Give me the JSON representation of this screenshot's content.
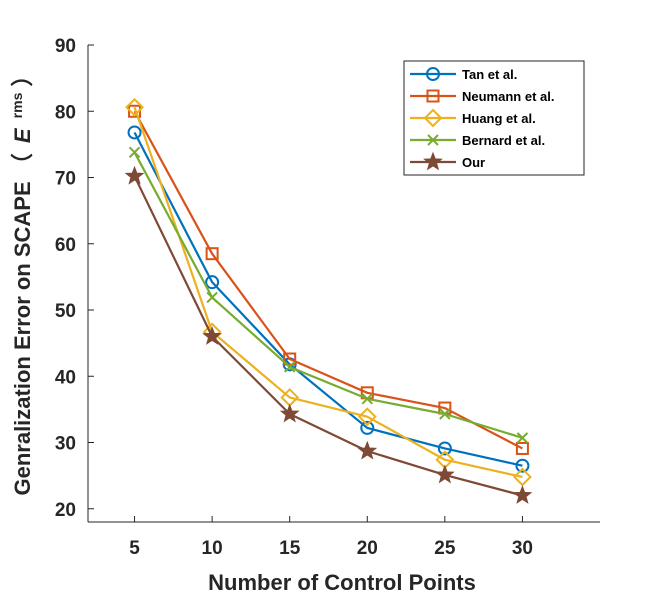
{
  "chart_data": {
    "type": "line",
    "title": "",
    "xlabel": "Number of Control Points",
    "ylabel_main": "Genralization  Error on SCAPE （",
    "ylabel_symbol": "E",
    "ylabel_subscript": "rms",
    "ylabel_close": "）",
    "xlim": [
      2,
      35
    ],
    "ylim": [
      18,
      90
    ],
    "x_ticks": [
      5,
      10,
      15,
      20,
      25,
      30
    ],
    "y_ticks": [
      20,
      30,
      40,
      50,
      60,
      70,
      80,
      90
    ],
    "grid": false,
    "legend_position": "top-right",
    "x": [
      5,
      10,
      15,
      20,
      25,
      30
    ],
    "series": [
      {
        "name": "Tan et al.",
        "color": "#0072BD",
        "marker": "circle",
        "values": [
          76.8,
          54.2,
          41.8,
          32.2,
          29.1,
          26.5
        ]
      },
      {
        "name": "Neumann et al.",
        "color": "#D95319",
        "marker": "square",
        "values": [
          80.0,
          58.5,
          42.6,
          37.5,
          35.2,
          29.1
        ]
      },
      {
        "name": "Huang et al.",
        "color": "#EDB120",
        "marker": "diamond",
        "values": [
          80.6,
          46.7,
          36.8,
          33.9,
          27.4,
          24.8
        ]
      },
      {
        "name": "Bernard et al.",
        "color": "#77AC30",
        "marker": "x",
        "values": [
          73.8,
          51.9,
          41.4,
          36.6,
          34.3,
          30.7
        ]
      },
      {
        "name": "Our",
        "color": "#7E4A35",
        "marker": "star",
        "values": [
          70.2,
          46.0,
          34.3,
          28.7,
          25.1,
          22.0
        ]
      }
    ]
  }
}
